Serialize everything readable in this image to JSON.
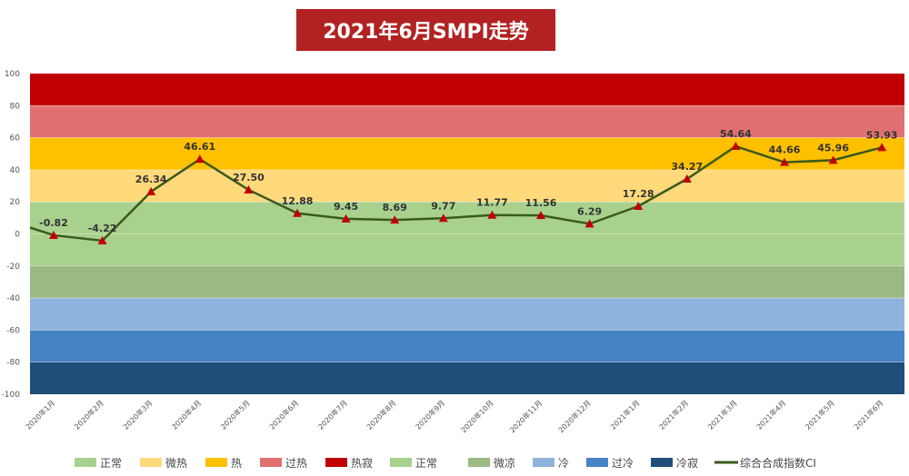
{
  "title": "2021年6月SMPI走势",
  "chart_data": {
    "type": "line",
    "title": "2021年6月SMPI走势",
    "ylim": [
      -100,
      100
    ],
    "yticks": [
      100,
      80,
      60,
      40,
      20,
      0,
      -20,
      -40,
      -60,
      -80,
      -100
    ],
    "categories": [
      "2020年1月",
      "2020年2月",
      "2020年3月",
      "2020年4月",
      "2020年5月",
      "2020年6月",
      "2020年7月",
      "2020年8月",
      "2020年9月",
      "2020年10月",
      "2020年11月",
      "2020年12月",
      "2021年1月",
      "2021年2月",
      "2021年3月",
      "2021年4月",
      "2021年5月",
      "2021年6月"
    ],
    "series": [
      {
        "name": "综合合成指数CI",
        "values": [
          -0.82,
          -4.22,
          26.34,
          46.61,
          27.5,
          12.88,
          9.45,
          8.69,
          9.77,
          11.77,
          11.56,
          6.29,
          17.28,
          34.27,
          54.64,
          44.66,
          45.96,
          53.93
        ],
        "labels": [
          "-0.82",
          "-4.22",
          "26.34",
          "46.61",
          "27.50",
          "12.88",
          "9.45",
          "8.69",
          "9.77",
          "11.77",
          "11.56",
          "6.29",
          "17.28",
          "34.27",
          "54.64",
          "44.66",
          "45.96",
          "53.93"
        ],
        "color": "#3a5a1c",
        "marker_color": "#c00000"
      }
    ],
    "bands": [
      {
        "name": "热寂",
        "from": 80,
        "to": 100,
        "color": "#c00000"
      },
      {
        "name": "过热",
        "from": 60,
        "to": 80,
        "color": "#e07070"
      },
      {
        "name": "热",
        "from": 40,
        "to": 60,
        "color": "#ffc000"
      },
      {
        "name": "微热",
        "from": 20,
        "to": 40,
        "color": "#ffd97a"
      },
      {
        "name": "正常",
        "from": 0,
        "to": 20,
        "color": "#a9d18e"
      },
      {
        "name": "正常",
        "from": -20,
        "to": 0,
        "color": "#a9d18e"
      },
      {
        "name": "微凉",
        "from": -40,
        "to": -20,
        "color": "#9ab983"
      },
      {
        "name": "冷",
        "from": -60,
        "to": -40,
        "color": "#8eb4dd"
      },
      {
        "name": "过冷",
        "from": -80,
        "to": -60,
        "color": "#4683c4"
      },
      {
        "name": "冷寂",
        "from": -100,
        "to": -80,
        "color": "#1f4e79"
      }
    ],
    "legend": [
      {
        "label": "正常",
        "color": "#a9d18e",
        "kind": "box"
      },
      {
        "label": "微热",
        "color": "#ffd97a",
        "kind": "box"
      },
      {
        "label": "热",
        "color": "#ffc000",
        "kind": "box"
      },
      {
        "label": "过热",
        "color": "#e07070",
        "kind": "box"
      },
      {
        "label": "热寂",
        "color": "#c00000",
        "kind": "box"
      },
      {
        "label": "正常",
        "color": "#a9d18e",
        "kind": "box"
      },
      {
        "label": "微凉",
        "color": "#9ab983",
        "kind": "box"
      },
      {
        "label": "冷",
        "color": "#8eb4dd",
        "kind": "box"
      },
      {
        "label": "过冷",
        "color": "#4683c4",
        "kind": "box"
      },
      {
        "label": "冷寂",
        "color": "#1f4e79",
        "kind": "box"
      },
      {
        "label": "综合合成指数CI",
        "color": "#3a5a1c",
        "kind": "line"
      }
    ],
    "legend_position": "bottom"
  }
}
